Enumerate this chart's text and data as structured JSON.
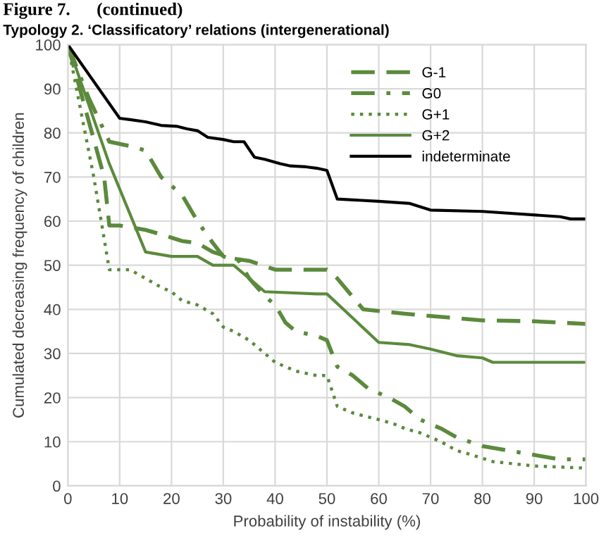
{
  "chart_data": {
    "type": "line",
    "title": "Typology 2. ‘Classificatory’ relations (intergenerational)",
    "annotations": [
      "Figure 7.      (continued)"
    ],
    "xlabel": "Probability of instability (%)",
    "ylabel": "Cumulated decreasing frequency of children",
    "xlim": [
      0,
      100
    ],
    "ylim": [
      0,
      100
    ],
    "xticks": [
      0,
      10,
      20,
      30,
      40,
      50,
      60,
      70,
      80,
      90,
      100
    ],
    "yticks": [
      0,
      10,
      20,
      30,
      40,
      50,
      60,
      70,
      80,
      90,
      100
    ],
    "grid": true,
    "legend": "top right",
    "series": [
      {
        "name": "G-1",
        "color": "#5b8a3c",
        "line_style": "dashed",
        "x": [
          0,
          3,
          7,
          8,
          10,
          15,
          18,
          22,
          25,
          28,
          32,
          35,
          40,
          50,
          52,
          57,
          65,
          70,
          80,
          90,
          100
        ],
        "values": [
          100,
          87,
          70,
          59,
          59,
          58,
          57,
          55.5,
          55,
          53,
          51.5,
          51,
          49,
          49,
          47,
          40,
          39,
          38.5,
          37.5,
          37.3,
          36.7
        ]
      },
      {
        "name": "G0",
        "color": "#5b8a3c",
        "line_style": "dashdot",
        "x": [
          0,
          4,
          8,
          12,
          15,
          18,
          22,
          25,
          28,
          30,
          33,
          35,
          38,
          40,
          42,
          44,
          48,
          50,
          52,
          55,
          58,
          62,
          65,
          68,
          70,
          72,
          75,
          80,
          85,
          90,
          95,
          100
        ],
        "values": [
          100,
          88,
          78,
          77,
          76,
          70,
          66,
          60,
          55,
          52,
          51,
          47,
          43,
          41,
          37,
          35,
          34,
          33,
          27,
          25,
          22,
          20,
          18,
          15,
          14,
          13,
          11,
          9,
          8,
          7,
          6,
          6
        ]
      },
      {
        "name": "G+1",
        "color": "#5b8a3c",
        "line_style": "dotted",
        "x": [
          0,
          5,
          7,
          8,
          12,
          15,
          18,
          20,
          22,
          25,
          28,
          30,
          32,
          35,
          38,
          40,
          44,
          48,
          50,
          52,
          55,
          60,
          63,
          65,
          68,
          70,
          72,
          75,
          78,
          82,
          90,
          100
        ],
        "values": [
          100,
          70,
          56,
          49,
          49,
          47,
          45,
          44,
          42,
          41,
          39,
          36,
          35,
          33,
          30,
          28,
          26,
          25,
          25,
          18,
          16.5,
          15,
          14,
          13,
          12,
          11,
          10,
          8,
          7,
          5.5,
          4.5,
          4
        ]
      },
      {
        "name": "G+2",
        "color": "#5b8a3c",
        "line_style": "solid",
        "x": [
          0,
          8,
          15,
          20,
          25,
          28,
          32,
          35,
          38,
          48,
          50,
          55,
          60,
          66,
          70,
          75,
          80,
          82,
          100
        ],
        "values": [
          100,
          73,
          53,
          52,
          52,
          50,
          50,
          47,
          44,
          43.5,
          43.5,
          38,
          32.5,
          32,
          31,
          29.5,
          29,
          28,
          28
        ]
      },
      {
        "name": "indeterminate",
        "color": "#000000",
        "line_style": "solid",
        "x": [
          0,
          10,
          12,
          15,
          18,
          21,
          23,
          25,
          27,
          30,
          32,
          34,
          36,
          38,
          41,
          43,
          46,
          48,
          50,
          52,
          60,
          66,
          70,
          80,
          95,
          97,
          100
        ],
        "values": [
          100,
          83.3,
          83,
          82.5,
          81.7,
          81.5,
          80.9,
          80.5,
          79,
          78.5,
          78,
          78,
          74.5,
          74,
          73,
          72.5,
          72.3,
          72,
          71.5,
          65,
          64.5,
          64,
          62.5,
          62.2,
          61,
          60.5,
          60.5
        ]
      }
    ]
  }
}
